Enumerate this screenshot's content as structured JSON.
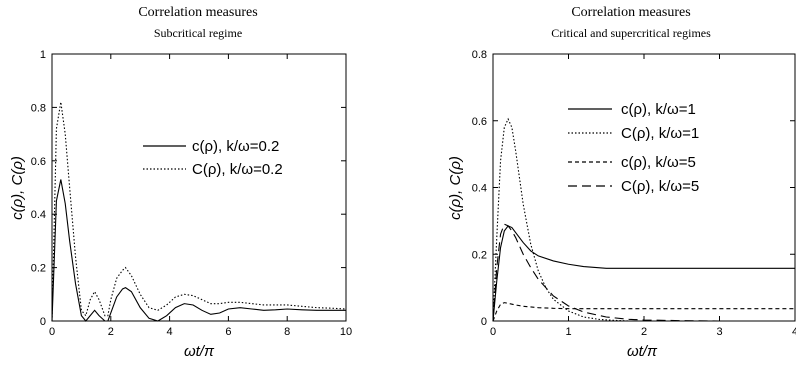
{
  "chart_data": [
    {
      "type": "line",
      "title": "Correlation measures",
      "subtitle": "Subcritical regime",
      "xlabel": "ωt/π",
      "ylabel": "c(ρ), C(ρ)",
      "xlim": [
        0,
        10
      ],
      "ylim": [
        0,
        1
      ],
      "xticks": [
        "0",
        "2",
        "4",
        "6",
        "8",
        "10"
      ],
      "yticks": [
        "0",
        "0.2",
        "0.4",
        "0.6",
        "0.8",
        "1"
      ],
      "grid": false,
      "legend_position": "center-right",
      "series": [
        {
          "name": "c(ρ), k/ω=0.2",
          "dash": "solid",
          "x": [
            0,
            0.15,
            0.3,
            0.45,
            0.6,
            0.8,
            1.0,
            1.15,
            1.3,
            1.45,
            1.6,
            1.8,
            1.9,
            2.0,
            2.2,
            2.4,
            2.5,
            2.7,
            3.0,
            3.3,
            3.6,
            3.9,
            4.2,
            4.5,
            4.8,
            5.1,
            5.4,
            5.7,
            6.0,
            6.4,
            6.8,
            7.2,
            7.6,
            8.0,
            8.5,
            9.0,
            9.5,
            10
          ],
          "y": [
            0,
            0.45,
            0.53,
            0.44,
            0.3,
            0.14,
            0.02,
            0.0,
            0.02,
            0.04,
            0.02,
            0.0,
            0.0,
            0.03,
            0.09,
            0.12,
            0.125,
            0.11,
            0.05,
            0.01,
            0.0,
            0.02,
            0.05,
            0.065,
            0.06,
            0.04,
            0.025,
            0.03,
            0.045,
            0.05,
            0.045,
            0.04,
            0.042,
            0.045,
            0.042,
            0.04,
            0.04,
            0.04
          ]
        },
        {
          "name": "C(ρ), k/ω=0.2",
          "dash": "dotted",
          "x": [
            0,
            0.15,
            0.3,
            0.45,
            0.6,
            0.8,
            1.0,
            1.15,
            1.3,
            1.45,
            1.6,
            1.8,
            1.9,
            2.0,
            2.2,
            2.4,
            2.5,
            2.7,
            3.0,
            3.3,
            3.6,
            3.9,
            4.2,
            4.5,
            4.8,
            5.1,
            5.4,
            5.7,
            6.0,
            6.4,
            6.8,
            7.2,
            7.6,
            8.0,
            8.5,
            9.0,
            9.5,
            10
          ],
          "y": [
            0,
            0.72,
            0.82,
            0.7,
            0.5,
            0.24,
            0.04,
            0.02,
            0.08,
            0.11,
            0.08,
            0.02,
            0.02,
            0.08,
            0.16,
            0.19,
            0.2,
            0.17,
            0.1,
            0.05,
            0.04,
            0.06,
            0.09,
            0.1,
            0.095,
            0.08,
            0.065,
            0.065,
            0.07,
            0.07,
            0.065,
            0.06,
            0.06,
            0.06,
            0.055,
            0.05,
            0.048,
            0.045
          ]
        }
      ]
    },
    {
      "type": "line",
      "title": "Correlation measures",
      "subtitle": "Critical and supercritical regimes",
      "xlabel": "ωt/π",
      "ylabel": "c(ρ), C(ρ)",
      "xlim": [
        0,
        4
      ],
      "ylim": [
        0,
        0.8
      ],
      "xticks": [
        "0",
        "1",
        "2",
        "3",
        "4"
      ],
      "yticks": [
        "0",
        "0.2",
        "0.4",
        "0.6",
        "0.8"
      ],
      "grid": false,
      "legend_position": "top-right",
      "series": [
        {
          "name": "c(ρ), k/ω=1",
          "dash": "solid",
          "x": [
            0,
            0.05,
            0.1,
            0.15,
            0.2,
            0.25,
            0.3,
            0.4,
            0.5,
            0.6,
            0.8,
            1.0,
            1.2,
            1.5,
            2.0,
            2.5,
            3.0,
            3.5,
            4.0
          ],
          "y": [
            0,
            0.12,
            0.22,
            0.27,
            0.285,
            0.28,
            0.265,
            0.235,
            0.21,
            0.195,
            0.18,
            0.17,
            0.163,
            0.158,
            0.158,
            0.158,
            0.158,
            0.158,
            0.158
          ]
        },
        {
          "name": "C(ρ), k/ω=1",
          "dash": "dotted",
          "x": [
            0,
            0.05,
            0.1,
            0.15,
            0.2,
            0.25,
            0.3,
            0.35,
            0.4,
            0.5,
            0.6,
            0.7,
            0.8,
            1.0,
            1.2,
            1.4,
            1.6,
            1.8,
            2.0
          ],
          "y": [
            0,
            0.25,
            0.48,
            0.58,
            0.605,
            0.58,
            0.51,
            0.43,
            0.35,
            0.23,
            0.15,
            0.1,
            0.065,
            0.03,
            0.012,
            0.005,
            0.002,
            0.0,
            0.0
          ]
        },
        {
          "name": "c(ρ), k/ω=5",
          "dash": "short-dash",
          "x": [
            0,
            0.05,
            0.1,
            0.15,
            0.2,
            0.3,
            0.4,
            0.5,
            0.6,
            0.8,
            1.0,
            1.5,
            2.0,
            3.0,
            4.0
          ],
          "y": [
            0,
            0.03,
            0.05,
            0.055,
            0.053,
            0.048,
            0.044,
            0.042,
            0.04,
            0.038,
            0.037,
            0.037,
            0.037,
            0.037,
            0.037
          ]
        },
        {
          "name": "C(ρ), k/ω=5",
          "dash": "long-dash",
          "x": [
            0,
            0.05,
            0.1,
            0.15,
            0.2,
            0.25,
            0.3,
            0.4,
            0.5,
            0.6,
            0.8,
            1.0,
            1.2,
            1.5,
            1.8,
            2.0,
            2.5,
            3.0,
            4.0
          ],
          "y": [
            0,
            0.16,
            0.26,
            0.29,
            0.285,
            0.27,
            0.25,
            0.2,
            0.16,
            0.125,
            0.075,
            0.045,
            0.027,
            0.012,
            0.005,
            0.003,
            0.001,
            0.0,
            0.0
          ]
        }
      ]
    }
  ]
}
